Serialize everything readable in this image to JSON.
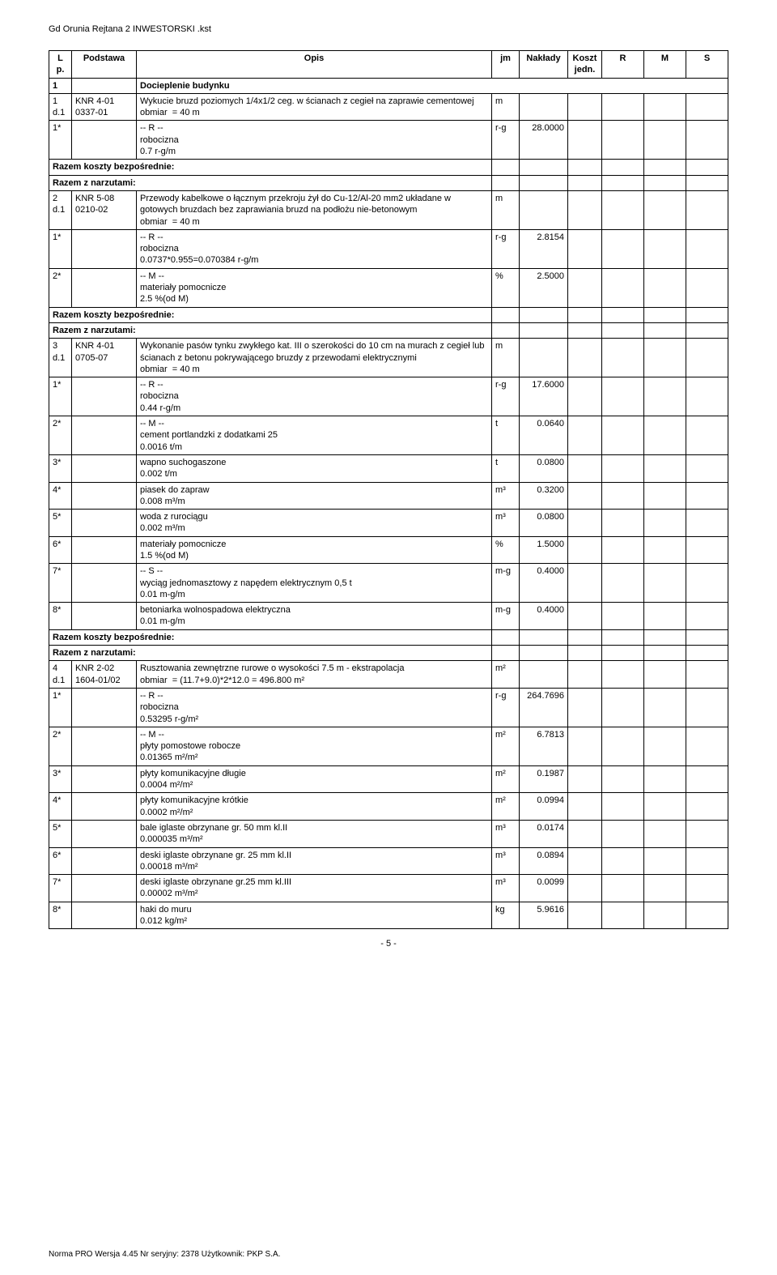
{
  "doc_title": "Gd Orunia Rejtana 2 INWESTORSKI .kst",
  "page_number": "- 5 -",
  "footer_text": "Norma PRO Wersja 4.45 Nr seryjny: 2378 Użytkownik: PKP S.A.",
  "headers": {
    "lp": "L p.",
    "pod": "Podstawa",
    "opis": "Opis",
    "jm": "jm",
    "nak": "Nakłady",
    "kj": "Koszt jedn.",
    "r": "R",
    "m": "M",
    "s": "S"
  },
  "rows": [
    {
      "type": "section",
      "lp": "1",
      "opis": "Docieplenie budynku"
    },
    {
      "type": "item",
      "lp": "1 d.1",
      "pod": "KNR 4-01 0337-01",
      "opis": "Wykucie bruzd poziomych 1/4x1/2 ceg. w ścianach z cegieł na zaprawie cementowej\nobmiar  = 40 m",
      "jm": "m"
    },
    {
      "type": "sub",
      "lp": "1*",
      "opis": "-- R --\nrobocizna\n0.7 r-g/m",
      "jm": "r-g",
      "nak": "28.0000"
    },
    {
      "type": "razem",
      "opis": "Razem koszty bezpośrednie:"
    },
    {
      "type": "razem",
      "opis": "Razem z narzutami:"
    },
    {
      "type": "item",
      "lp": "2 d.1",
      "pod": "KNR 5-08 0210-02",
      "opis": "Przewody kabelkowe o łącznym przekroju żył do Cu-12/Al-20 mm2 układane w gotowych bruzdach bez zaprawiania bruzd na podłożu nie-betonowym\nobmiar  = 40 m",
      "jm": "m"
    },
    {
      "type": "sub",
      "lp": "1*",
      "opis": "-- R --\nrobocizna\n0.0737*0.955=0.070384 r-g/m",
      "jm": "r-g",
      "nak": "2.8154"
    },
    {
      "type": "sub",
      "lp": "2*",
      "opis": "-- M --\nmateriały pomocnicze\n2.5 %(od M)",
      "jm": "%",
      "nak": "2.5000"
    },
    {
      "type": "razem",
      "opis": "Razem koszty bezpośrednie:"
    },
    {
      "type": "razem",
      "opis": "Razem z narzutami:"
    },
    {
      "type": "item",
      "lp": "3 d.1",
      "pod": "KNR 4-01 0705-07",
      "opis": "Wykonanie pasów tynku zwykłego kat. III o szerokości do 10 cm na murach z cegieł lub ścianach z betonu pokrywającego bruzdy z przewodami elektrycznymi\nobmiar  = 40 m",
      "jm": "m"
    },
    {
      "type": "sub",
      "lp": "1*",
      "opis": "-- R --\nrobocizna\n0.44 r-g/m",
      "jm": "r-g",
      "nak": "17.6000"
    },
    {
      "type": "sub",
      "lp": "2*",
      "opis": "-- M --\ncement portlandzki z dodatkami 25\n0.0016 t/m",
      "jm": "t",
      "nak": "0.0640"
    },
    {
      "type": "sub",
      "lp": "3*",
      "opis": "wapno suchogaszone\n0.002 t/m",
      "jm": "t",
      "nak": "0.0800"
    },
    {
      "type": "sub",
      "lp": "4*",
      "opis": "piasek do zapraw\n0.008 m³/m",
      "jm": "m³",
      "nak": "0.3200"
    },
    {
      "type": "sub",
      "lp": "5*",
      "opis": "woda z rurociągu\n0.002 m³/m",
      "jm": "m³",
      "nak": "0.0800"
    },
    {
      "type": "sub",
      "lp": "6*",
      "opis": "materiały pomocnicze\n1.5 %(od M)",
      "jm": "%",
      "nak": "1.5000"
    },
    {
      "type": "sub",
      "lp": "7*",
      "opis": "-- S --\nwyciąg jednomasztowy z napędem elektrycznym 0,5 t\n0.01 m-g/m",
      "jm": "m-g",
      "nak": "0.4000"
    },
    {
      "type": "sub",
      "lp": "8*",
      "opis": "betoniarka wolnospadowa elektryczna\n0.01 m-g/m",
      "jm": "m-g",
      "nak": "0.4000"
    },
    {
      "type": "razem",
      "opis": "Razem koszty bezpośrednie:"
    },
    {
      "type": "razem",
      "opis": "Razem z narzutami:"
    },
    {
      "type": "item",
      "lp": "4 d.1",
      "pod": "KNR 2-02 1604-01/02",
      "opis": "Rusztowania zewnętrzne rurowe o wysokości 7.5 m - ekstrapolacja\nobmiar  = (11.7+9.0)*2*12.0 = 496.800 m²",
      "jm": "m²"
    },
    {
      "type": "sub",
      "lp": "1*",
      "opis": "-- R --\nrobocizna\n0.53295 r-g/m²",
      "jm": "r-g",
      "nak": "264.7696"
    },
    {
      "type": "sub",
      "lp": "2*",
      "opis": "-- M --\npłyty pomostowe robocze\n0.01365 m²/m²",
      "jm": "m²",
      "nak": "6.7813"
    },
    {
      "type": "sub",
      "lp": "3*",
      "opis": "płyty komunikacyjne długie\n0.0004 m²/m²",
      "jm": "m²",
      "nak": "0.1987"
    },
    {
      "type": "sub",
      "lp": "4*",
      "opis": "płyty komunikacyjne krótkie\n0.0002 m²/m²",
      "jm": "m²",
      "nak": "0.0994"
    },
    {
      "type": "sub",
      "lp": "5*",
      "opis": "bale iglaste obrzynane gr. 50 mm kl.II\n0.000035 m³/m²",
      "jm": "m³",
      "nak": "0.0174"
    },
    {
      "type": "sub",
      "lp": "6*",
      "opis": "deski iglaste obrzynane gr. 25 mm kl.II\n0.00018 m³/m²",
      "jm": "m³",
      "nak": "0.0894"
    },
    {
      "type": "sub",
      "lp": "7*",
      "opis": "deski iglaste obrzynane gr.25 mm kl.III\n0.00002 m³/m²",
      "jm": "m³",
      "nak": "0.0099"
    },
    {
      "type": "sub",
      "lp": "8*",
      "opis": "haki do muru\n0.012 kg/m²",
      "jm": "kg",
      "nak": "5.9616"
    }
  ]
}
